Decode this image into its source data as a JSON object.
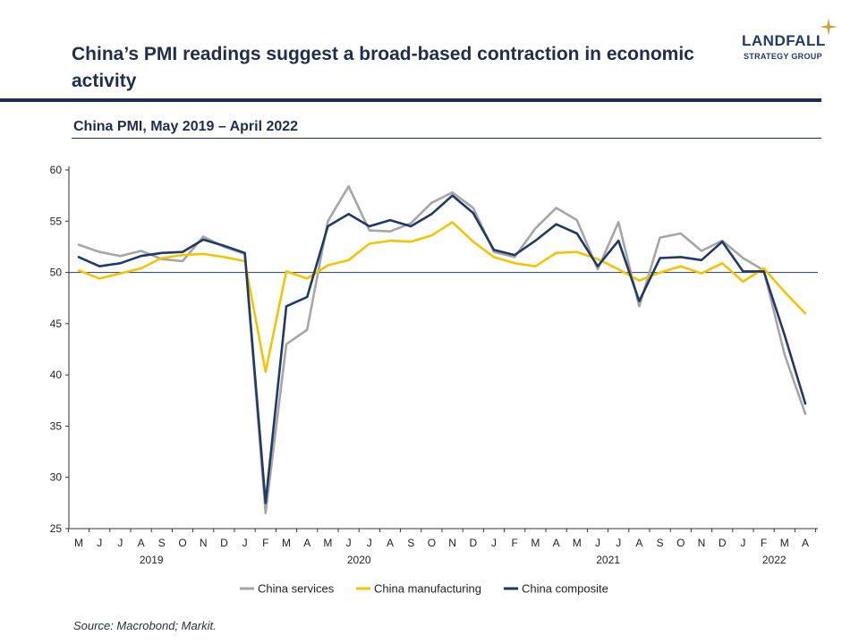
{
  "header": {
    "title": "China’s PMI readings suggest a broad-based contraction in economic activity",
    "subtitle": "China PMI, May 2019 – April 2022",
    "source": "Source: Macrobond; Markit."
  },
  "logo": {
    "name": "LANDFALL",
    "tagline": "STRATEGY GROUP",
    "accent_color": "#c9a53a",
    "brand_color": "#1f3a6e"
  },
  "chart_data": {
    "type": "line",
    "title": "China PMI, May 2019 – April 2022",
    "xlabel": "",
    "ylabel": "",
    "ylim": [
      25,
      60
    ],
    "yticks": [
      25,
      30,
      35,
      40,
      45,
      50,
      55,
      60
    ],
    "reference_line": 50,
    "grid": false,
    "legend_position": "bottom",
    "month_labels": [
      "M",
      "J",
      "J",
      "A",
      "S",
      "O",
      "N",
      "D",
      "J",
      "F",
      "M",
      "A",
      "M",
      "J",
      "J",
      "A",
      "S",
      "O",
      "N",
      "D",
      "J",
      "F",
      "M",
      "A",
      "M",
      "J",
      "J",
      "A",
      "S",
      "O",
      "N",
      "D",
      "J",
      "F",
      "M",
      "A"
    ],
    "year_labels": [
      {
        "label": "2019",
        "index": 3.5
      },
      {
        "label": "2020",
        "index": 13.5
      },
      {
        "label": "2021",
        "index": 25.5
      },
      {
        "label": "2022",
        "index": 33.5
      }
    ],
    "series": [
      {
        "name": "China services",
        "color": "#a6a6a6",
        "values": [
          52.7,
          52.0,
          51.6,
          52.1,
          51.3,
          51.1,
          53.5,
          52.5,
          51.8,
          26.5,
          43.0,
          44.4,
          55.0,
          58.4,
          54.1,
          54.0,
          54.8,
          56.8,
          57.8,
          56.3,
          52.0,
          51.5,
          54.3,
          56.3,
          55.1,
          50.3,
          54.9,
          46.7,
          53.4,
          53.8,
          52.1,
          53.1,
          51.4,
          50.2,
          42.0,
          36.2
        ]
      },
      {
        "name": "China manufacturing",
        "color": "#f5c400",
        "values": [
          50.2,
          49.4,
          49.9,
          50.4,
          51.4,
          51.7,
          51.8,
          51.5,
          51.1,
          40.3,
          50.1,
          49.4,
          50.7,
          51.2,
          52.8,
          53.1,
          53.0,
          53.6,
          54.9,
          53.0,
          51.5,
          50.9,
          50.6,
          51.9,
          52.0,
          51.3,
          50.3,
          49.2,
          50.0,
          50.6,
          49.9,
          50.9,
          49.1,
          50.4,
          48.1,
          46.0
        ]
      },
      {
        "name": "China composite",
        "color": "#1f3a68",
        "values": [
          51.5,
          50.6,
          50.9,
          51.6,
          51.9,
          52.0,
          53.2,
          52.6,
          51.9,
          27.5,
          46.7,
          47.6,
          54.5,
          55.7,
          54.5,
          55.1,
          54.5,
          55.7,
          57.5,
          55.8,
          52.2,
          51.7,
          53.1,
          54.7,
          53.8,
          50.6,
          53.1,
          47.2,
          51.4,
          51.5,
          51.2,
          53.0,
          50.1,
          50.1,
          43.9,
          37.2
        ]
      }
    ]
  }
}
